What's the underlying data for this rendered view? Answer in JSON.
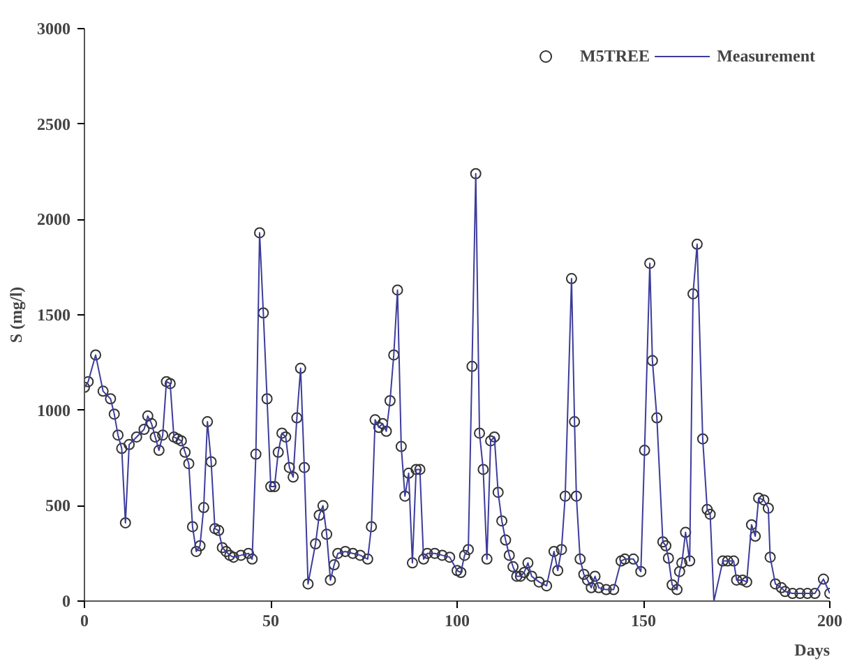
{
  "chart_data": {
    "type": "line",
    "xlabel": "Days",
    "ylabel": "S (mg/l)",
    "x": [
      0,
      1,
      3,
      5,
      7,
      8,
      9,
      10,
      11,
      12,
      14,
      16,
      17,
      18,
      19,
      20,
      21,
      22,
      23,
      24,
      25,
      26,
      27,
      28,
      29,
      30,
      31,
      32,
      33,
      34,
      35,
      36,
      37,
      38,
      39,
      40,
      42,
      44,
      45,
      46,
      47,
      48,
      49,
      50,
      51,
      52,
      53,
      54,
      55,
      56,
      57,
      58,
      59,
      60,
      62,
      63,
      64,
      65,
      66,
      67,
      68,
      70,
      72,
      74,
      76,
      77,
      78,
      79,
      80,
      81,
      82,
      83,
      84,
      85,
      86,
      87,
      88,
      89,
      90,
      91,
      92,
      94,
      96,
      98,
      100,
      101,
      102,
      103,
      104,
      105,
      106,
      107,
      108,
      109,
      110,
      111,
      112,
      113,
      114,
      115,
      116,
      117,
      118,
      119,
      120,
      122,
      124,
      126,
      127,
      128,
      129,
      130.7,
      131.5,
      132,
      133,
      134,
      135,
      136,
      137,
      138,
      140,
      142,
      144,
      145,
      147.3,
      149.3,
      150.3,
      151.7,
      152.4,
      153.6,
      155.2,
      156,
      156.7,
      157.7,
      159,
      159.7,
      160.3,
      161.3,
      162.4,
      163.3,
      164.4,
      165.9,
      167.1,
      167.9,
      168.9,
      171.3,
      172.6,
      174.2,
      175,
      176.6,
      177.7,
      179,
      180,
      180.9,
      182.3,
      183.5,
      184,
      185.4,
      187,
      188,
      190,
      192,
      194,
      196,
      198.3,
      200
    ],
    "series": [
      {
        "name": "M5TREE",
        "type": "scatter",
        "marker": "circle",
        "color": "#333333",
        "values": [
          1120,
          1150,
          1290,
          1100,
          1060,
          980,
          870,
          800,
          410,
          820,
          860,
          900,
          970,
          930,
          860,
          790,
          870,
          1150,
          1140,
          860,
          850,
          840,
          780,
          720,
          390,
          260,
          290,
          490,
          940,
          730,
          380,
          370,
          280,
          260,
          240,
          230,
          240,
          250,
          220,
          770,
          1930,
          1510,
          1060,
          600,
          600,
          780,
          880,
          860,
          700,
          650,
          960,
          1220,
          700,
          90,
          300,
          450,
          500,
          350,
          110,
          190,
          250,
          260,
          250,
          240,
          220,
          390,
          950,
          910,
          930,
          890,
          1050,
          1290,
          1630,
          810,
          550,
          670,
          200,
          690,
          690,
          220,
          250,
          250,
          240,
          230,
          160,
          150,
          240,
          270,
          1230,
          2240,
          880,
          690,
          220,
          840,
          860,
          570,
          420,
          320,
          240,
          180,
          130,
          130,
          150,
          200,
          130,
          100,
          80,
          260,
          160,
          270,
          550,
          1690,
          940,
          550,
          220,
          140,
          110,
          70,
          130,
          70,
          60,
          60,
          210,
          220,
          220,
          155,
          790,
          1770,
          1260,
          960,
          310,
          290,
          225,
          85,
          60,
          155,
          200,
          360,
          210,
          1610,
          1870,
          850,
          480,
          455,
          null,
          210,
          210,
          210,
          110,
          110,
          100,
          400,
          340,
          540,
          530,
          487,
          230,
          90,
          70,
          50,
          40,
          40,
          40,
          40,
          115,
          40
        ]
      },
      {
        "name": "Measurement",
        "marker": "none",
        "color": "#3c3c9c",
        "values": [
          1120,
          1150,
          1290,
          1100,
          1060,
          980,
          870,
          800,
          410,
          820,
          860,
          900,
          970,
          930,
          860,
          790,
          870,
          1150,
          1140,
          860,
          850,
          840,
          780,
          720,
          390,
          260,
          290,
          490,
          940,
          730,
          380,
          370,
          280,
          260,
          240,
          230,
          240,
          250,
          220,
          770,
          1930,
          1510,
          1060,
          600,
          600,
          780,
          880,
          860,
          700,
          650,
          960,
          1220,
          700,
          90,
          300,
          450,
          500,
          350,
          110,
          190,
          250,
          260,
          250,
          240,
          220,
          390,
          950,
          910,
          930,
          890,
          1050,
          1290,
          1630,
          810,
          550,
          670,
          200,
          690,
          690,
          220,
          250,
          250,
          240,
          230,
          160,
          150,
          240,
          270,
          1230,
          2240,
          880,
          690,
          220,
          840,
          860,
          570,
          420,
          320,
          240,
          180,
          130,
          130,
          150,
          200,
          130,
          100,
          80,
          260,
          160,
          270,
          550,
          1690,
          940,
          550,
          220,
          140,
          110,
          70,
          130,
          70,
          60,
          60,
          210,
          220,
          220,
          155,
          790,
          1770,
          1260,
          960,
          310,
          290,
          225,
          85,
          60,
          155,
          200,
          360,
          210,
          1610,
          1870,
          850,
          480,
          455,
          0,
          210,
          210,
          210,
          110,
          110,
          100,
          400,
          340,
          540,
          530,
          487,
          230,
          90,
          70,
          50,
          40,
          40,
          40,
          40,
          115,
          40
        ]
      }
    ],
    "xlim": [
      0,
      200
    ],
    "xticks": [
      0,
      50,
      100,
      150,
      200
    ],
    "ylim": [
      0,
      3000
    ],
    "yticks": [
      0,
      500,
      1000,
      1500,
      2000,
      2500,
      3000
    ],
    "grid": false,
    "legend": "top right"
  }
}
